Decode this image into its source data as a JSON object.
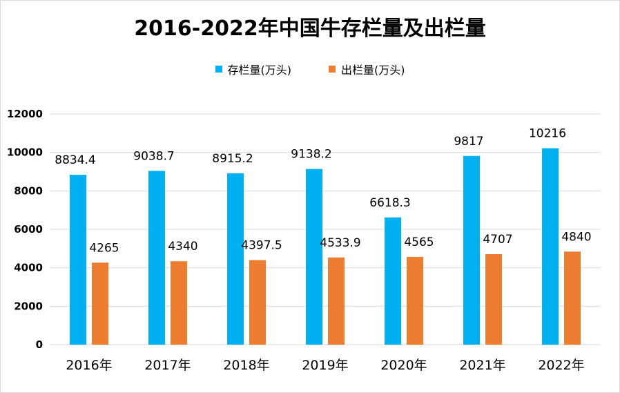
{
  "chart_data": {
    "type": "bar",
    "title": "2016-2022年中国牛存栏量及出栏量",
    "categories": [
      "2016年",
      "2017年",
      "2018年",
      "2019年",
      "2020年",
      "2021年",
      "2022年"
    ],
    "series": [
      {
        "name": "存栏量(万头)",
        "color": "#00b0f0",
        "values": [
          8834.4,
          9038.7,
          8915.2,
          9138.2,
          6618.3,
          9817,
          10216
        ],
        "labels": [
          "8834.4",
          "9038.7",
          "8915.2",
          "9138.2",
          "6618.3",
          "9817",
          "10216"
        ]
      },
      {
        "name": "出栏量(万头)",
        "color": "#ed7d31",
        "values": [
          4265,
          4340,
          4397.5,
          4533.9,
          4565,
          4707,
          4840
        ],
        "labels": [
          "4265",
          "4340",
          "4397.5",
          "4533.9",
          "4565",
          "4707",
          "4840"
        ]
      }
    ],
    "ylim": [
      0,
      12000
    ],
    "yticks": [
      "0",
      "2000",
      "4000",
      "6000",
      "8000",
      "10000",
      "12000"
    ],
    "grid": true,
    "legend_position": "top"
  }
}
